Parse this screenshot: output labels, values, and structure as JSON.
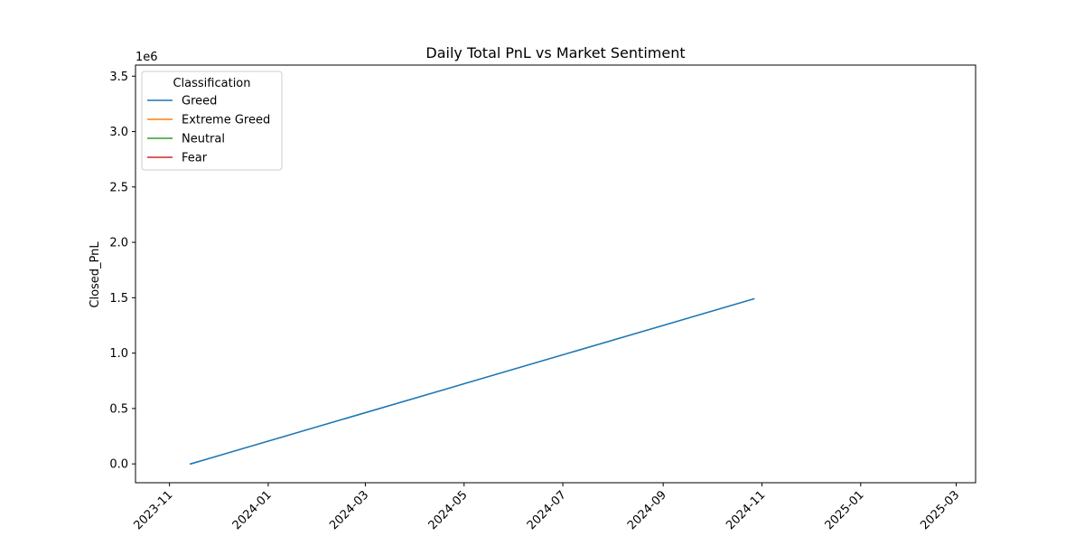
{
  "chart_data": {
    "type": "line",
    "title": "Daily Total PnL vs Market Sentiment",
    "xlabel": "",
    "ylabel": "Closed_PnL",
    "y_scale_label": "1e6",
    "x_axis_type": "date",
    "x_ticks": [
      "2023-11",
      "2024-01",
      "2024-03",
      "2024-05",
      "2024-07",
      "2024-09",
      "2024-11",
      "2025-01",
      "2025-03"
    ],
    "xlim": [
      "2023-10-11",
      "2025-03-13"
    ],
    "y_ticks": [
      0.0,
      0.5,
      1.0,
      1.5,
      2.0,
      2.5,
      3.0,
      3.5
    ],
    "ylim": [
      -0.17,
      3.6
    ],
    "grid": false,
    "legend_title": "Classification",
    "legend_placement": "top-left",
    "series": [
      {
        "name": "Greed",
        "color": "#1f77b4",
        "x": [
          "2023-11-14",
          "2024-10-27"
        ],
        "y": [
          0.0,
          1.49
        ]
      },
      {
        "name": "Extreme Greed",
        "color": "#ff7f0e",
        "x": [],
        "y": []
      },
      {
        "name": "Neutral",
        "color": "#2ca02c",
        "x": [],
        "y": []
      },
      {
        "name": "Fear",
        "color": "#d62728",
        "x": [],
        "y": []
      }
    ]
  }
}
